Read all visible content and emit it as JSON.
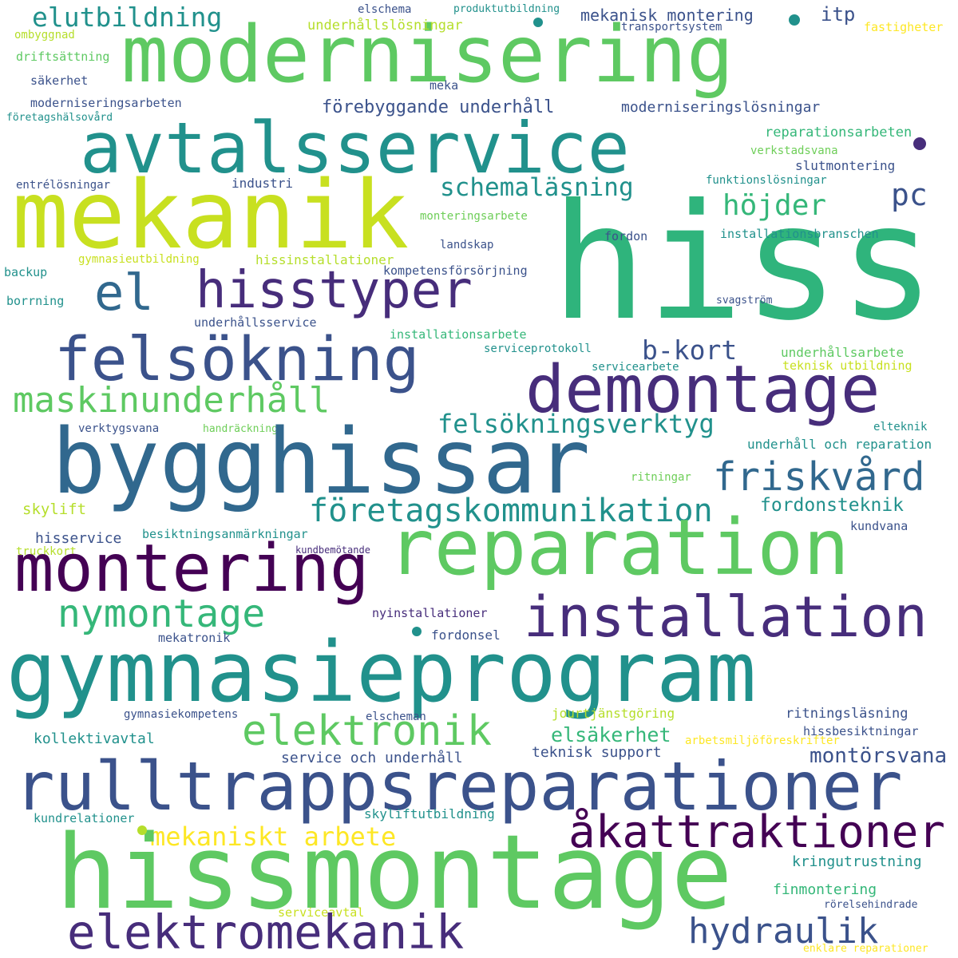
{
  "words": [
    {
      "text": "moderniseringsarbeten",
      "color": "#3b528b"
    },
    {
      "text": "säkerhet",
      "color": "#3b528b"
    },
    {
      "text": "driftsättning",
      "color": "#5ec962"
    },
    {
      "text": "ombyggnad",
      "color": "#b5de2b"
    },
    {
      "text": "elutbildning",
      "color": "#21918c"
    },
    {
      "text": "modernisering",
      "color": "#5ec962"
    },
    {
      "text": "avtalsservice",
      "color": "#21918c"
    },
    {
      "text": "mekanik",
      "color": "#c8e020"
    },
    {
      "text": "elschema",
      "color": "#3b528b"
    },
    {
      "text": "produktutbildning",
      "color": "#21918c"
    },
    {
      "text": "underhållslösningar",
      "color": "#b5de2b"
    },
    {
      "text": "transportsystem",
      "color": "#3b528b"
    },
    {
      "text": "fastigheter",
      "color": "#fde725"
    },
    {
      "text": "mekanisk montering",
      "color": "#3b528b"
    },
    {
      "text": "itp",
      "color": "#3b528b"
    },
    {
      "text": "meka",
      "color": "#3b528b"
    },
    {
      "text": "förebyggande underhåll",
      "color": "#3b528b"
    },
    {
      "text": "moderniseringslösningar",
      "color": "#3b528b"
    },
    {
      "text": "företagshälsovård",
      "color": "#21918c"
    },
    {
      "text": "reparationsarbeten",
      "color": "#35b779"
    },
    {
      "text": "verkstadsvana",
      "color": "#6ece58"
    },
    {
      "text": "slutmontering",
      "color": "#3b528b"
    },
    {
      "text": "funktionslösningar",
      "color": "#21918c"
    },
    {
      "text": "entrélösningar",
      "color": "#3b528b"
    },
    {
      "text": "industri",
      "color": "#3b528b"
    },
    {
      "text": "schemaläsning",
      "color": "#21918c"
    },
    {
      "text": "pc",
      "color": "#3b528b"
    },
    {
      "text": "höjder",
      "color": "#35b779"
    },
    {
      "text": "hiss",
      "color": "#2fb47c"
    },
    {
      "text": "monteringsarbete",
      "color": "#6ece58"
    },
    {
      "text": "landskap",
      "color": "#3b528b"
    },
    {
      "text": "fordon",
      "color": "#3b528b"
    },
    {
      "text": "installationsbranschen",
      "color": "#21918c"
    },
    {
      "text": "gymnasieutbildning",
      "color": "#c8e020"
    },
    {
      "text": "hissinstallationer",
      "color": "#b5de2b"
    },
    {
      "text": "kompetensförsörjning",
      "color": "#3b528b"
    },
    {
      "text": "backup",
      "color": "#21918c"
    },
    {
      "text": "borrning",
      "color": "#21918c"
    },
    {
      "text": "el",
      "color": "#31688e"
    },
    {
      "text": "hisstyper",
      "color": "#472d7b"
    },
    {
      "text": "underhållsservice",
      "color": "#3b528b"
    },
    {
      "text": "svagström",
      "color": "#3b528b"
    },
    {
      "text": "installationsarbete",
      "color": "#35b779"
    },
    {
      "text": "serviceprotokoll",
      "color": "#21918c"
    },
    {
      "text": "felsökning",
      "color": "#3b528b"
    },
    {
      "text": "b-kort",
      "color": "#3b528b"
    },
    {
      "text": "underhållsarbete",
      "color": "#5ec962"
    },
    {
      "text": "servicearbete",
      "color": "#21918c"
    },
    {
      "text": "teknisk utbildning",
      "color": "#c8e020"
    },
    {
      "text": "demontage",
      "color": "#472d7b"
    },
    {
      "text": "maskinunderhåll",
      "color": "#5ec962"
    },
    {
      "text": "felsökningsverktyg",
      "color": "#21918c"
    },
    {
      "text": "verktygsvana",
      "color": "#3b528b"
    },
    {
      "text": "handräckning",
      "color": "#6ece58"
    },
    {
      "text": "elteknik",
      "color": "#21918c"
    },
    {
      "text": "underhåll och reparation",
      "color": "#21918c"
    },
    {
      "text": "bygghissar",
      "color": "#31688e"
    },
    {
      "text": "friskvård",
      "color": "#31688e"
    },
    {
      "text": "ritningar",
      "color": "#6ece58"
    },
    {
      "text": "företagskommunikation",
      "color": "#21918c"
    },
    {
      "text": "fordonsteknik",
      "color": "#21918c"
    },
    {
      "text": "skylift",
      "color": "#b5de2b"
    },
    {
      "text": "kundvana",
      "color": "#3b528b"
    },
    {
      "text": "hisservice",
      "color": "#3b528b"
    },
    {
      "text": "besiktningsanmärkningar",
      "color": "#21918c"
    },
    {
      "text": "truckkort",
      "color": "#b5de2b"
    },
    {
      "text": "kundbemötande",
      "color": "#472d7b"
    },
    {
      "text": "reparation",
      "color": "#5ec962"
    },
    {
      "text": "montering",
      "color": "#440154"
    },
    {
      "text": "nymontage",
      "color": "#35b779"
    },
    {
      "text": "installation",
      "color": "#472d7b"
    },
    {
      "text": "nyinstallationer",
      "color": "#472d7b"
    },
    {
      "text": "mekatronik",
      "color": "#3b528b"
    },
    {
      "text": "fordonsel",
      "color": "#3b528b"
    },
    {
      "text": "gymnasieprogram",
      "color": "#21918c"
    },
    {
      "text": "gymnasiekompetens",
      "color": "#3b528b"
    },
    {
      "text": "elscheman",
      "color": "#3b528b"
    },
    {
      "text": "jourtjänstgöring",
      "color": "#b5de2b"
    },
    {
      "text": "ritningsläsning",
      "color": "#3b528b"
    },
    {
      "text": "kollektivavtal",
      "color": "#21918c"
    },
    {
      "text": "elektronik",
      "color": "#5ec962"
    },
    {
      "text": "elsäkerhet",
      "color": "#35b779"
    },
    {
      "text": "hissbesiktningar",
      "color": "#3b528b"
    },
    {
      "text": "arbetsmiljöföreskrifter",
      "color": "#fde725"
    },
    {
      "text": "service och underhåll",
      "color": "#3b528b"
    },
    {
      "text": "teknisk support",
      "color": "#3b528b"
    },
    {
      "text": "montörsvana",
      "color": "#3b528b"
    },
    {
      "text": "rulltrappsreparationer",
      "color": "#3b528b"
    },
    {
      "text": "kundrelationer",
      "color": "#21918c"
    },
    {
      "text": "skyliftutbildning",
      "color": "#21918c"
    },
    {
      "text": "mekaniskt arbete",
      "color": "#fde725"
    },
    {
      "text": "åkattraktioner",
      "color": "#440154"
    },
    {
      "text": "kringutrustning",
      "color": "#21918c"
    },
    {
      "text": "hissmontage",
      "color": "#5ec962"
    },
    {
      "text": "finmontering",
      "color": "#35b779"
    },
    {
      "text": "rörelsehindrade",
      "color": "#3b528b"
    },
    {
      "text": "serviceavtal",
      "color": "#c8e020"
    },
    {
      "text": "elektromekanik",
      "color": "#472d7b"
    },
    {
      "text": "hydraulik",
      "color": "#3b528b"
    },
    {
      "text": "enklare reparationer",
      "color": "#fde725"
    }
  ]
}
